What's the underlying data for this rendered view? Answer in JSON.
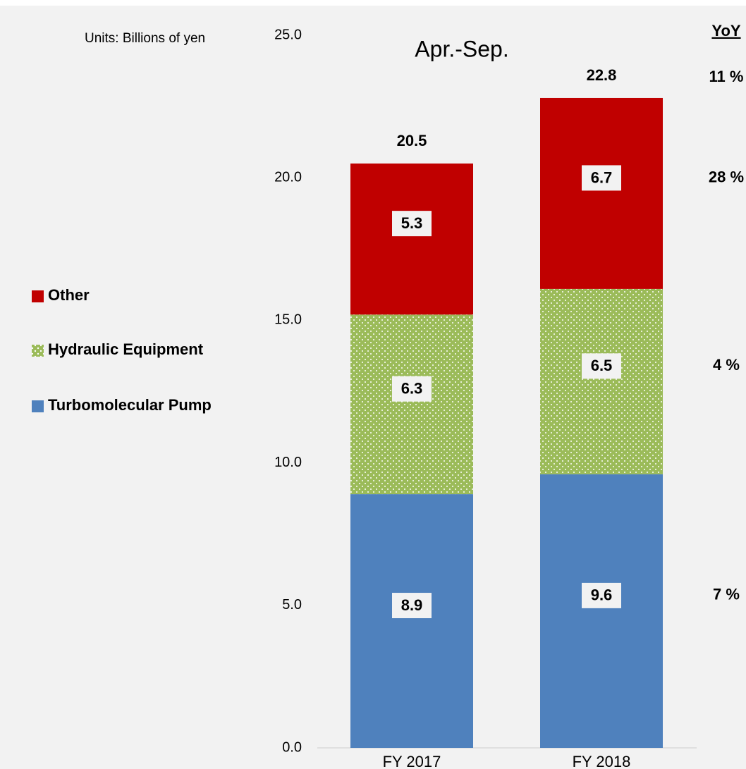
{
  "chart_data": {
    "type": "stacked_bar",
    "title": "Apr.-Sep.",
    "units_note": "Units: Billions of yen",
    "categories": [
      "FY 2017",
      "FY 2018"
    ],
    "series": [
      {
        "name": "Turbomolecular Pump",
        "color": "#4f81bd",
        "values": [
          8.9,
          9.6
        ]
      },
      {
        "name": "Hydraulic Equipment",
        "color": "#9bbb59",
        "pattern": "dotted",
        "values": [
          6.3,
          6.5
        ]
      },
      {
        "name": "Other",
        "color": "#c00000",
        "values": [
          5.3,
          6.7
        ]
      }
    ],
    "totals": [
      20.5,
      22.8
    ],
    "ylim": [
      0,
      25
    ],
    "yticks": [
      {
        "value": 0,
        "label": "0.0"
      },
      {
        "value": 5,
        "label": "5.0"
      },
      {
        "value": 10,
        "label": "10.0"
      },
      {
        "value": 15,
        "label": "15.0"
      },
      {
        "value": 20,
        "label": "20.0"
      },
      {
        "value": 25,
        "label": "25.0"
      }
    ],
    "legend": "left",
    "yoy": {
      "title": "YoY",
      "values": [
        7,
        4,
        28
      ],
      "value_labels": [
        "7 %",
        "4 %",
        "28 %"
      ],
      "total": 11,
      "total_label": "11 %"
    }
  }
}
